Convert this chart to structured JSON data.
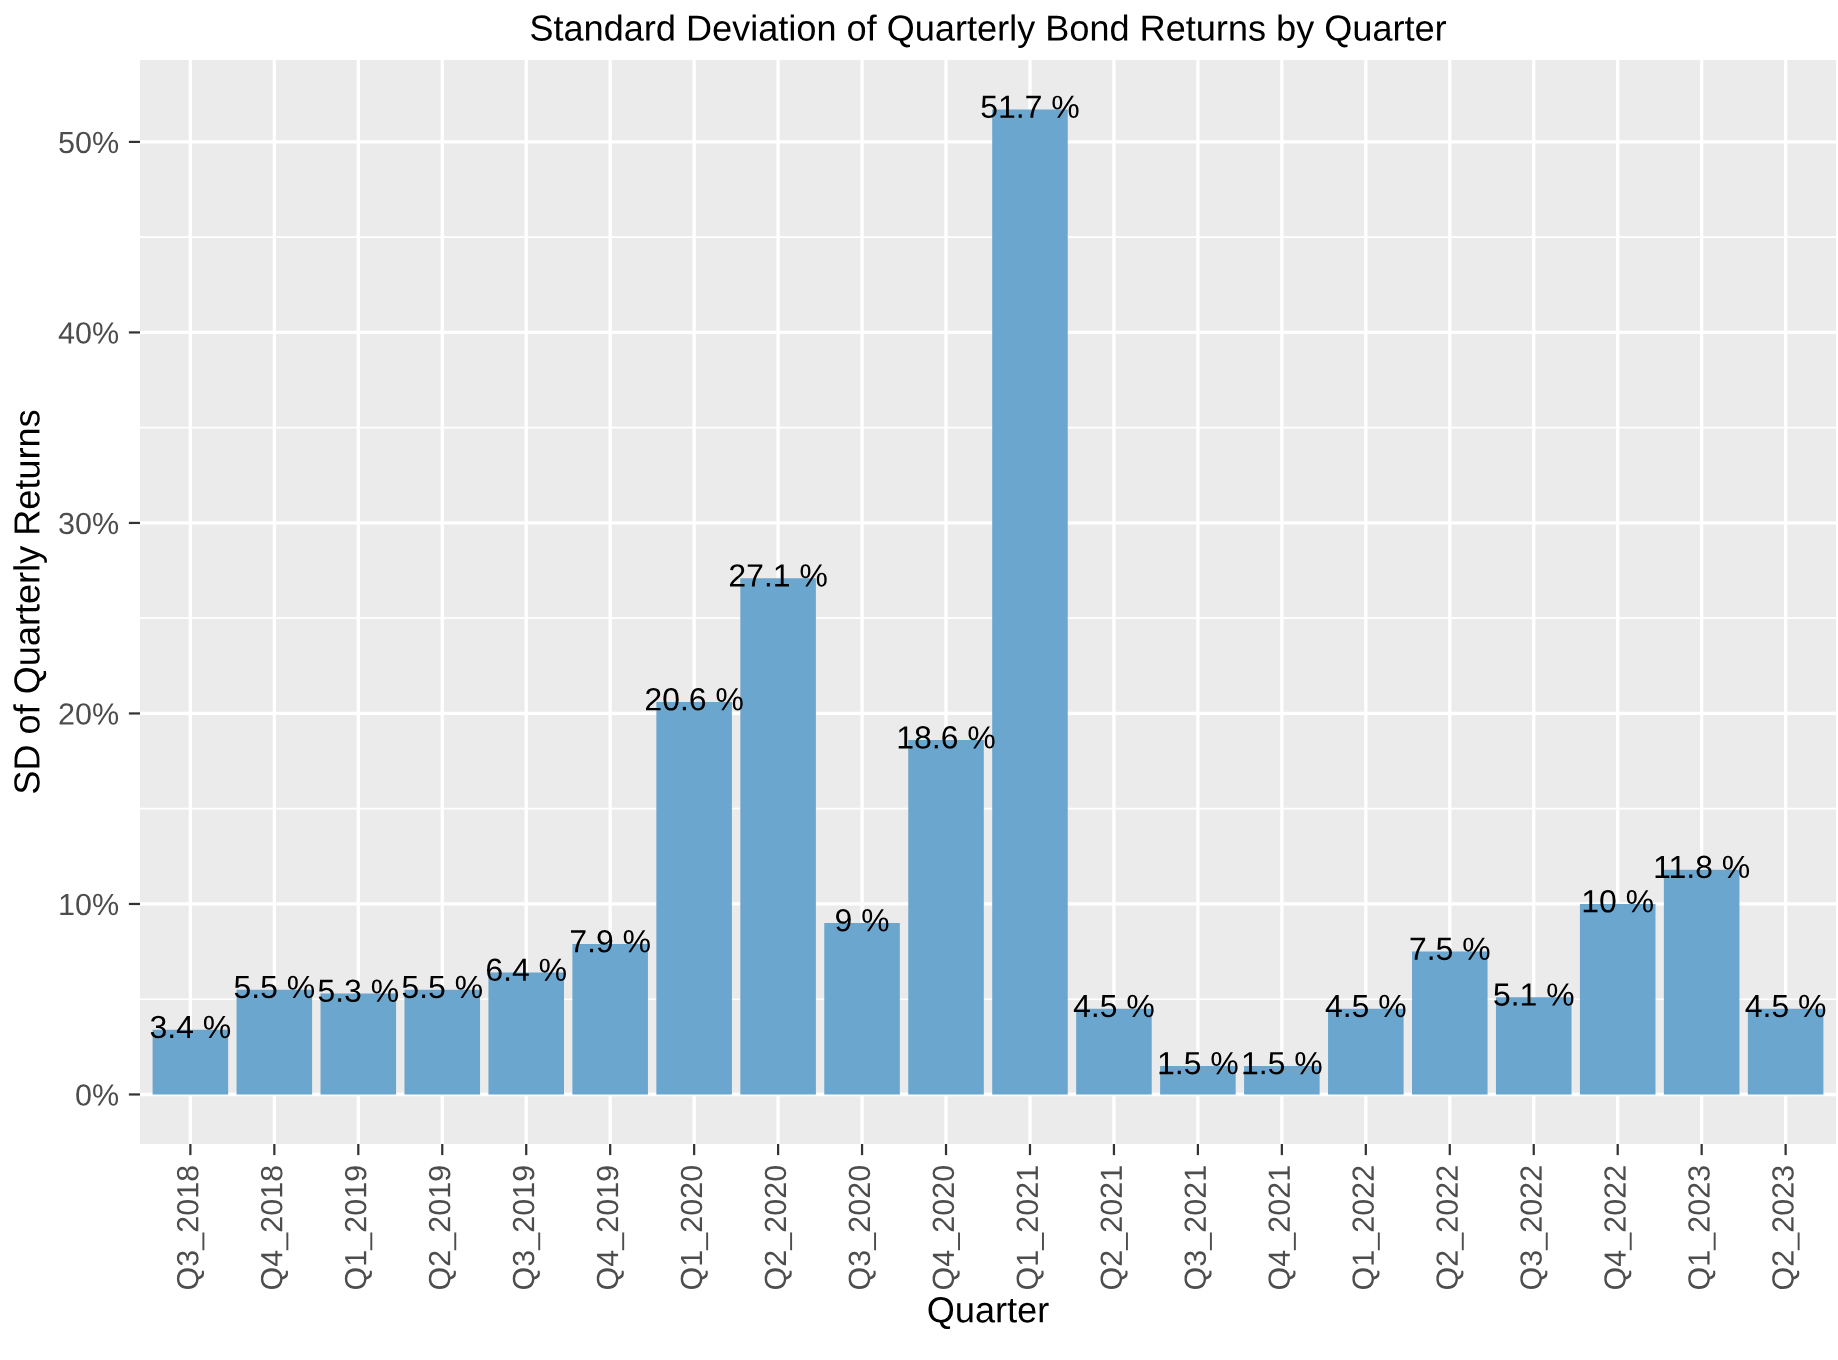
{
  "chart_data": {
    "type": "bar",
    "title": "Standard Deviation of Quarterly Bond Returns by Quarter",
    "xlabel": "Quarter",
    "ylabel": "SD of Quarterly Returns",
    "categories": [
      "Q3_2018",
      "Q4_2018",
      "Q1_2019",
      "Q2_2019",
      "Q3_2019",
      "Q4_2019",
      "Q1_2020",
      "Q2_2020",
      "Q3_2020",
      "Q4_2020",
      "Q1_2021",
      "Q2_2021",
      "Q3_2021",
      "Q4_2021",
      "Q1_2022",
      "Q2_2022",
      "Q3_2022",
      "Q4_2022",
      "Q1_2023",
      "Q2_2023"
    ],
    "values": [
      3.4,
      5.5,
      5.3,
      5.5,
      6.4,
      7.9,
      20.6,
      27.1,
      9,
      18.6,
      51.7,
      4.5,
      1.5,
      1.5,
      4.5,
      7.5,
      5.1,
      10,
      11.8,
      4.5
    ],
    "value_labels": [
      "3.4 %",
      "5.5 %",
      "5.3 %",
      "5.5 %",
      "6.4 %",
      "7.9 %",
      "20.6 %",
      "27.1 %",
      "9 %",
      "18.6 %",
      "51.7 %",
      "4.5 %",
      "1.5 %",
      "1.5 %",
      "4.5 %",
      "7.5 %",
      "5.1 %",
      "10 %",
      "11.8 %",
      "4.5 %"
    ],
    "color": "#6ba6ce",
    "ylim": [
      -2.6,
      54.3
    ],
    "yticks": [
      {
        "value": 0,
        "label": "0%"
      },
      {
        "value": 10,
        "label": "10%"
      },
      {
        "value": 20,
        "label": "20%"
      },
      {
        "value": 30,
        "label": "30%"
      },
      {
        "value": 40,
        "label": "40%"
      },
      {
        "value": 50,
        "label": "50%"
      }
    ],
    "grid": true
  }
}
